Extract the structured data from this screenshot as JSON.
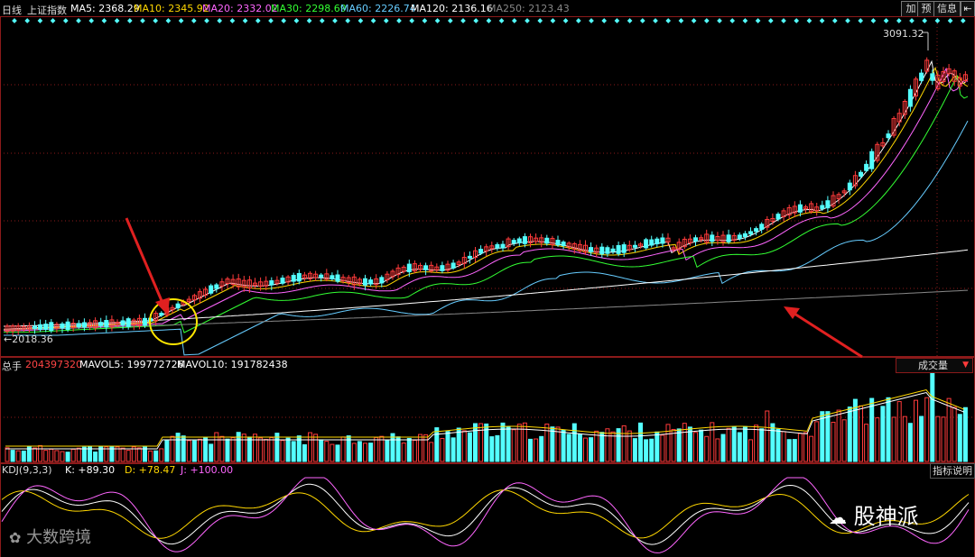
{
  "header": {
    "period": "日线",
    "index_name": "上证指数",
    "ma": [
      {
        "label": "MA5: 2368.29",
        "color": "#ffffff"
      },
      {
        "label": "MA10: 2345.92",
        "color": "#ffd700"
      },
      {
        "label": "MA20: 2332.02",
        "color": "#ff66ff"
      },
      {
        "label": "MA30: 2298.69",
        "color": "#33ff33"
      },
      {
        "label": "MA60: 2226.74",
        "color": "#66ccff"
      },
      {
        "label": "MA120: 2136.16",
        "color": "#ffffff"
      },
      {
        "label": "MA250: 2123.43",
        "color": "#888888"
      }
    ],
    "buttons": {
      "add": "加",
      "predict": "预",
      "info": "信息",
      "collapse": "⇤"
    }
  },
  "price": {
    "high_label": "3091.32",
    "low_label": "2018.36"
  },
  "volume": {
    "total_label": "总手",
    "total_value": "204397320",
    "mavol5": "MAVOL5: 199772726",
    "mavol10": "MAVOL10: 191782438",
    "select_value": "成交量"
  },
  "kdj": {
    "name": "KDJ(9,3,3)",
    "k": "K: +89.30",
    "d": "D: +78.47",
    "j": "J: +100.00",
    "help": "指标说明"
  },
  "watermarks": {
    "left": "大数跨境",
    "right": "股神派"
  },
  "colors": {
    "up": "#ff3b3b",
    "down": "#54ffff",
    "grid": "#8b1a1a"
  }
}
